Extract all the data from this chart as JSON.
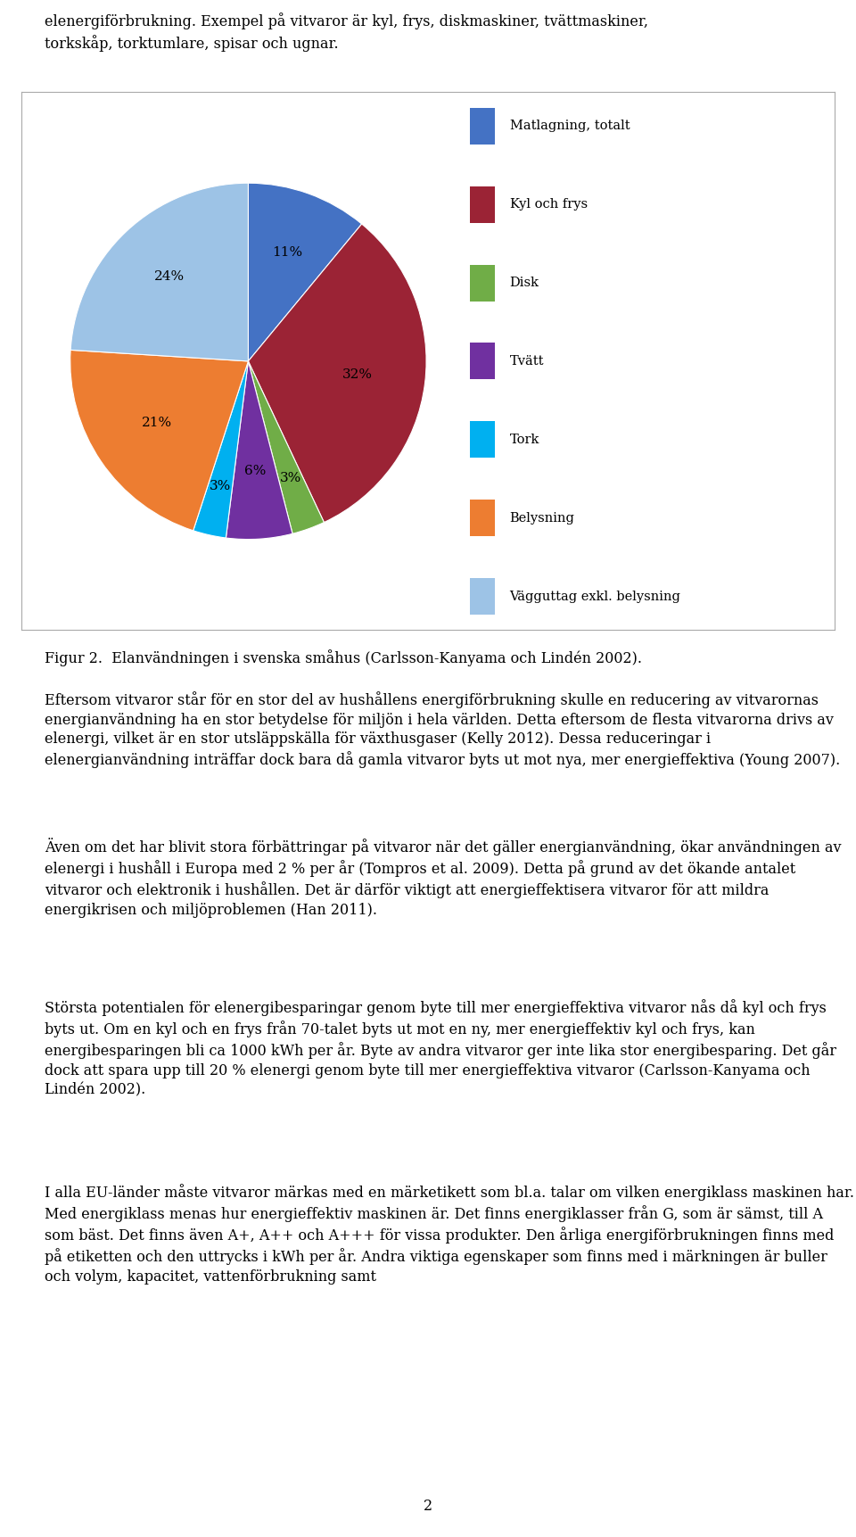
{
  "pie_values": [
    11,
    32,
    3,
    6,
    3,
    21,
    24
  ],
  "pie_colors": [
    "#4472C4",
    "#9B2335",
    "#70AD47",
    "#7030A0",
    "#00B0F0",
    "#ED7D31",
    "#9DC3E6"
  ],
  "pie_pct_labels": [
    "11%",
    "32%",
    "3%",
    "6%",
    "3%",
    "21%",
    "24%"
  ],
  "pie_pct_radii": [
    0.65,
    0.62,
    0.65,
    0.62,
    0.65,
    0.62,
    0.65
  ],
  "legend_labels": [
    "Matlagning, totalt",
    "Kyl och frys",
    "Disk",
    "Tvätt",
    "Tork",
    "Belysning",
    "Vägguttag exkl. belysning"
  ],
  "figure_caption": "Figur 2.  Elanvändningen i svenska småhus (Carlsson-Kanyama och Lindén 2002).",
  "top_line1": "elenergiförbrukning. Exempel på vitvaror är kyl, frys, diskmaskiner, tvättmaskiner,",
  "top_line2": "torkskåp, torktumlare, spisar och ugnar.",
  "para1": "Eftersom vitvaror står för en stor del av hushållens energiförbrukning skulle en reducering av vitvarornas energianvändning ha en stor betydelse för miljön i hela världen. Detta eftersom de flesta vitvarorna drivs av elenergi, vilket är en stor utsläppskälla för växthusgaser (Kelly 2012). Dessa reduceringar i elenergianvändning inträffar dock bara då gamla vitvaror byts ut mot nya, mer energieffektiva (Young 2007).",
  "para2": "Även om det har blivit stora förbättringar på vitvaror när det gäller energianvändning, ökar användningen av elenergi i hushåll i Europa med 2 % per år (Tompros et al. 2009). Detta på grund av det ökande antalet vitvaror och elektronik i hushållen. Det är därför viktigt att energieffektisera vitvaror för att mildra energikrisen och miljöproblemen (Han 2011).",
  "para3": "Största potentialen för elenergibesparingar genom byte till mer energieffektiva vitvaror nås då kyl och frys byts ut. Om en kyl och en frys från 70-talet byts ut mot en ny, mer energieffektiv kyl och frys, kan energibesparingen bli ca 1000 kWh per år. Byte av andra vitvaror ger inte lika stor energibesparing. Det går dock att spara upp till 20 % elenergi genom byte till mer energieffektiva vitvaror (Carlsson-Kanyama och Lindén 2002).",
  "para4": "I alla EU-länder måste vitvaror märkas med en märketikett som bl.a. talar om vilken energiklass maskinen har. Med energiklass menas hur energieffektiv maskinen är. Det finns energiklasser från G, som är sämst, till A som bäst. Det finns även A+, A++ och A+++ för vissa produkter. Den årliga energiförbrukningen finns med på etiketten och den uttrycks i kWh per år. Andra viktiga egenskaper som finns med i märkningen är buller och volym, kapacitet, vattenförbrukning samt",
  "page_number": "2",
  "background_color": "#FFFFFF",
  "body_fontsize": 11.5,
  "caption_fontsize": 11.5,
  "chart_border_color": "#AAAAAA",
  "startangle": 90
}
